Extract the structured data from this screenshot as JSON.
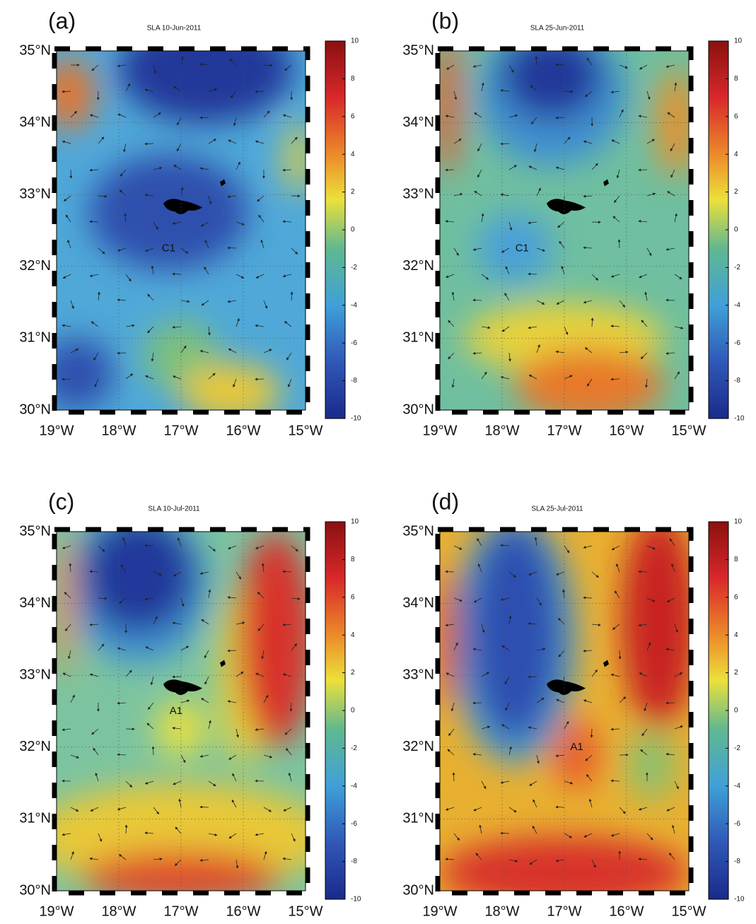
{
  "panels": [
    {
      "label": "(a)",
      "title": "SLA 10-Jun-2011",
      "eddy_label": "C1",
      "lat_ticks": [
        {
          "value": 35,
          "label": "35°N"
        },
        {
          "value": 34,
          "label": "34°N"
        },
        {
          "value": 33,
          "label": "33°N"
        },
        {
          "value": 32,
          "label": "32°N"
        },
        {
          "value": 31,
          "label": "31°N"
        },
        {
          "value": 30,
          "label": "30°N"
        }
      ],
      "lon_ticks": [
        {
          "value": -19,
          "label": "19°W"
        },
        {
          "value": -18,
          "label": "18°W"
        },
        {
          "value": -17,
          "label": "17°W"
        },
        {
          "value": -16,
          "label": "16°W"
        },
        {
          "value": -15,
          "label": "15°W"
        }
      ],
      "colorbar_ticks": [
        10,
        8,
        6,
        4,
        2,
        0,
        -2,
        -4,
        -6,
        -8,
        -10
      ]
    },
    {
      "label": "(b)",
      "title": "SLA 25-Jun-2011",
      "eddy_label": "C1",
      "lat_ticks": [
        {
          "value": 35,
          "label": "35°N"
        },
        {
          "value": 34,
          "label": "34°N"
        },
        {
          "value": 33,
          "label": "33°N"
        },
        {
          "value": 32,
          "label": "32°N"
        },
        {
          "value": 31,
          "label": "31°N"
        },
        {
          "value": 30,
          "label": "30°N"
        }
      ],
      "lon_ticks": [
        {
          "value": -19,
          "label": "19°W"
        },
        {
          "value": -18,
          "label": "18°W"
        },
        {
          "value": -17,
          "label": "17°W"
        },
        {
          "value": -16,
          "label": "16°W"
        },
        {
          "value": -15,
          "label": "15°W"
        }
      ],
      "colorbar_ticks": [
        10,
        8,
        6,
        4,
        2,
        0,
        -2,
        -4,
        -6,
        -8,
        -10
      ]
    },
    {
      "label": "(c)",
      "title": "SLA 10-Jul-2011",
      "eddy_label": "A1",
      "lat_ticks": [
        {
          "value": 35,
          "label": "35°N"
        },
        {
          "value": 34,
          "label": "34°N"
        },
        {
          "value": 33,
          "label": "33°N"
        },
        {
          "value": 32,
          "label": "32°N"
        },
        {
          "value": 31,
          "label": "31°N"
        },
        {
          "value": 30,
          "label": "30°N"
        }
      ],
      "lon_ticks": [
        {
          "value": -19,
          "label": "19°W"
        },
        {
          "value": -18,
          "label": "18°W"
        },
        {
          "value": -17,
          "label": "17°W"
        },
        {
          "value": -16,
          "label": "16°W"
        },
        {
          "value": -15,
          "label": "15°W"
        }
      ],
      "colorbar_ticks": [
        10,
        8,
        6,
        4,
        2,
        0,
        -2,
        -4,
        -6,
        -8,
        -10
      ]
    },
    {
      "label": "(d)",
      "title": "SLA 25-Jul-2011",
      "eddy_label": "A1",
      "lat_ticks": [
        {
          "value": 35,
          "label": "35°N"
        },
        {
          "value": 34,
          "label": "34°N"
        },
        {
          "value": 33,
          "label": "33°N"
        },
        {
          "value": 32,
          "label": "32°N"
        },
        {
          "value": 31,
          "label": "31°N"
        },
        {
          "value": 30,
          "label": "30°N"
        }
      ],
      "lon_ticks": [
        {
          "value": -19,
          "label": "19°W"
        },
        {
          "value": -18,
          "label": "18°W"
        },
        {
          "value": -17,
          "label": "17°W"
        },
        {
          "value": -16,
          "label": "16°W"
        },
        {
          "value": -15,
          "label": "15°W"
        }
      ],
      "colorbar_ticks": [
        10,
        8,
        6,
        4,
        2,
        0,
        -2,
        -4,
        -6,
        -8,
        -10
      ]
    }
  ]
}
